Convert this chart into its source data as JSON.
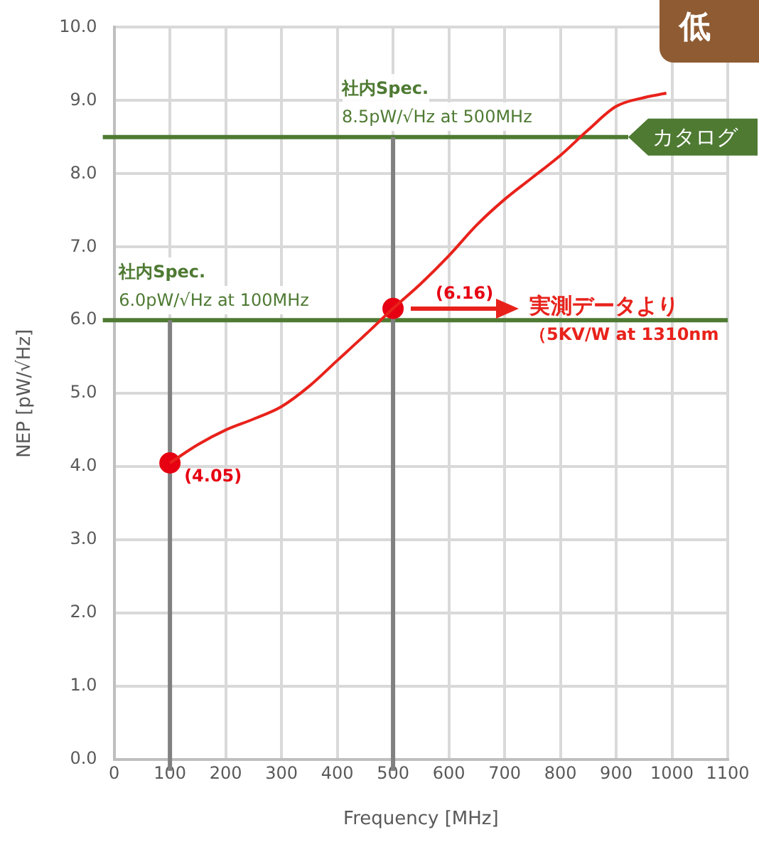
{
  "chart_data": {
    "type": "line",
    "xlabel": "Frequency [MHz]",
    "ylabel": "NEP [pW/√Hz]",
    "xlim": [
      0,
      1100
    ],
    "xticks": [
      0,
      100,
      200,
      300,
      400,
      500,
      600,
      700,
      800,
      900,
      1000,
      1100
    ],
    "ylim": [
      0,
      10
    ],
    "yticks": [
      {
        "value": 0,
        "label": "0.0"
      },
      {
        "value": 1,
        "label": "1.0"
      },
      {
        "value": 2,
        "label": "2.0"
      },
      {
        "value": 3,
        "label": "3.0"
      },
      {
        "value": 4,
        "label": "4.0"
      },
      {
        "value": 5,
        "label": "5.0"
      },
      {
        "value": 6,
        "label": "6.0"
      },
      {
        "value": 7,
        "label": "7.0"
      },
      {
        "value": 8,
        "label": "8.0"
      },
      {
        "value": 9,
        "label": "9.0"
      },
      {
        "value": 10,
        "label": "10.0"
      }
    ],
    "grid": true,
    "legend": false,
    "series": [
      {
        "color": "#e8221b",
        "marker": "none",
        "x": [
          100,
          150,
          200,
          250,
          300,
          350,
          400,
          450,
          500,
          550,
          600,
          650,
          700,
          750,
          800,
          850,
          900,
          950,
          990
        ],
        "values": [
          4.05,
          4.3,
          4.5,
          4.65,
          4.82,
          5.1,
          5.45,
          5.8,
          6.16,
          6.5,
          6.88,
          7.3,
          7.65,
          7.95,
          8.25,
          8.6,
          8.92,
          9.04,
          9.1
        ]
      },
      {
        "type": "scatter",
        "color": "#e60012",
        "marker": "circle",
        "x": [
          100,
          500
        ],
        "values": [
          4.05,
          6.16
        ],
        "value_labels": [
          "(4.05)",
          "(6.16)"
        ]
      }
    ],
    "ref_lines": [
      {
        "axis": "y",
        "value": 8.5,
        "label": "カタログ",
        "color": "#4e7a32"
      },
      {
        "axis": "y",
        "value": 6.0,
        "color": "#4e7a32"
      },
      {
        "axis": "x",
        "value": 100,
        "color": "#808080"
      },
      {
        "axis": "x",
        "value": 500,
        "color": "#808080"
      }
    ],
    "annotations": [
      "低",
      {
        "text": "社内Spec.\n8.5pW/√Hz at 500MHz",
        "x": 500,
        "y": 8.5
      },
      {
        "text": "社内Spec.\n6.0pW/√Hz at 100MHz",
        "x": 100,
        "y": 6.0
      },
      "実測データより",
      "（5KV/W at 1310nm"
    ]
  }
}
